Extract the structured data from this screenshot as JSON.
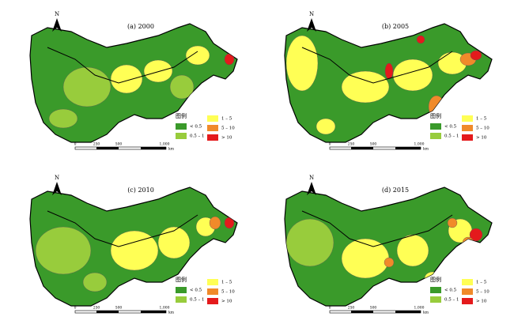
{
  "panels": [
    {
      "title": "(a) 2000"
    },
    {
      "title": "(b) 2005"
    },
    {
      "title": "(c) 2010"
    },
    {
      "title": "(d) 2015"
    }
  ],
  "north": "N",
  "legend": {
    "title": "图例",
    "items": [
      {
        "label": "< 0.5",
        "color": "#3a9a2a"
      },
      {
        "label": "0.5 – 1",
        "color": "#98cc3c"
      },
      {
        "label": "1 – 5",
        "color": "#ffff55"
      },
      {
        "label": "5 – 10",
        "color": "#f08a2a"
      },
      {
        "label": "> 10",
        "color": "#e41a1c"
      }
    ]
  },
  "scale_bar": {
    "ticks": [
      "0",
      "250",
      "500",
      "1,000"
    ],
    "unit": "km"
  }
}
